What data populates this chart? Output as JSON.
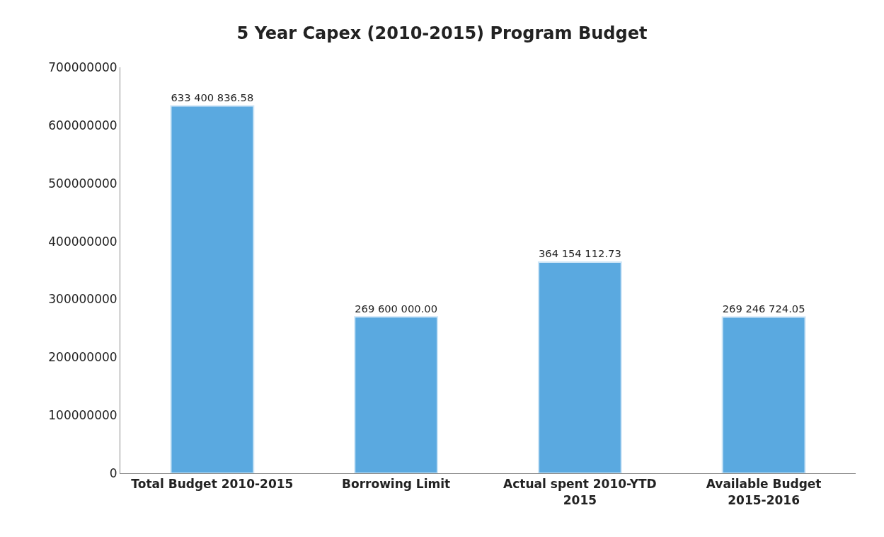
{
  "chart_data": {
    "type": "bar",
    "title": "5 Year Capex (2010-2015) Program Budget",
    "categories": [
      "Total Budget 2010-2015",
      "Borrowing Limit",
      "Actual spent 2010-YTD 2015",
      "Available Budget 2015-2016"
    ],
    "values": [
      633400836.58,
      269600000.0,
      364154112.73,
      269246724.05
    ],
    "value_labels": [
      "633 400 836.58",
      "269 600 000.00",
      "364 154 112.73",
      "269 246 724.05"
    ],
    "color": "#5aa9e0",
    "ylim": [
      0,
      700000000
    ],
    "yticks": [
      0,
      100000000,
      200000000,
      300000000,
      400000000,
      500000000,
      600000000,
      700000000
    ],
    "tick_labels": "xy"
  }
}
